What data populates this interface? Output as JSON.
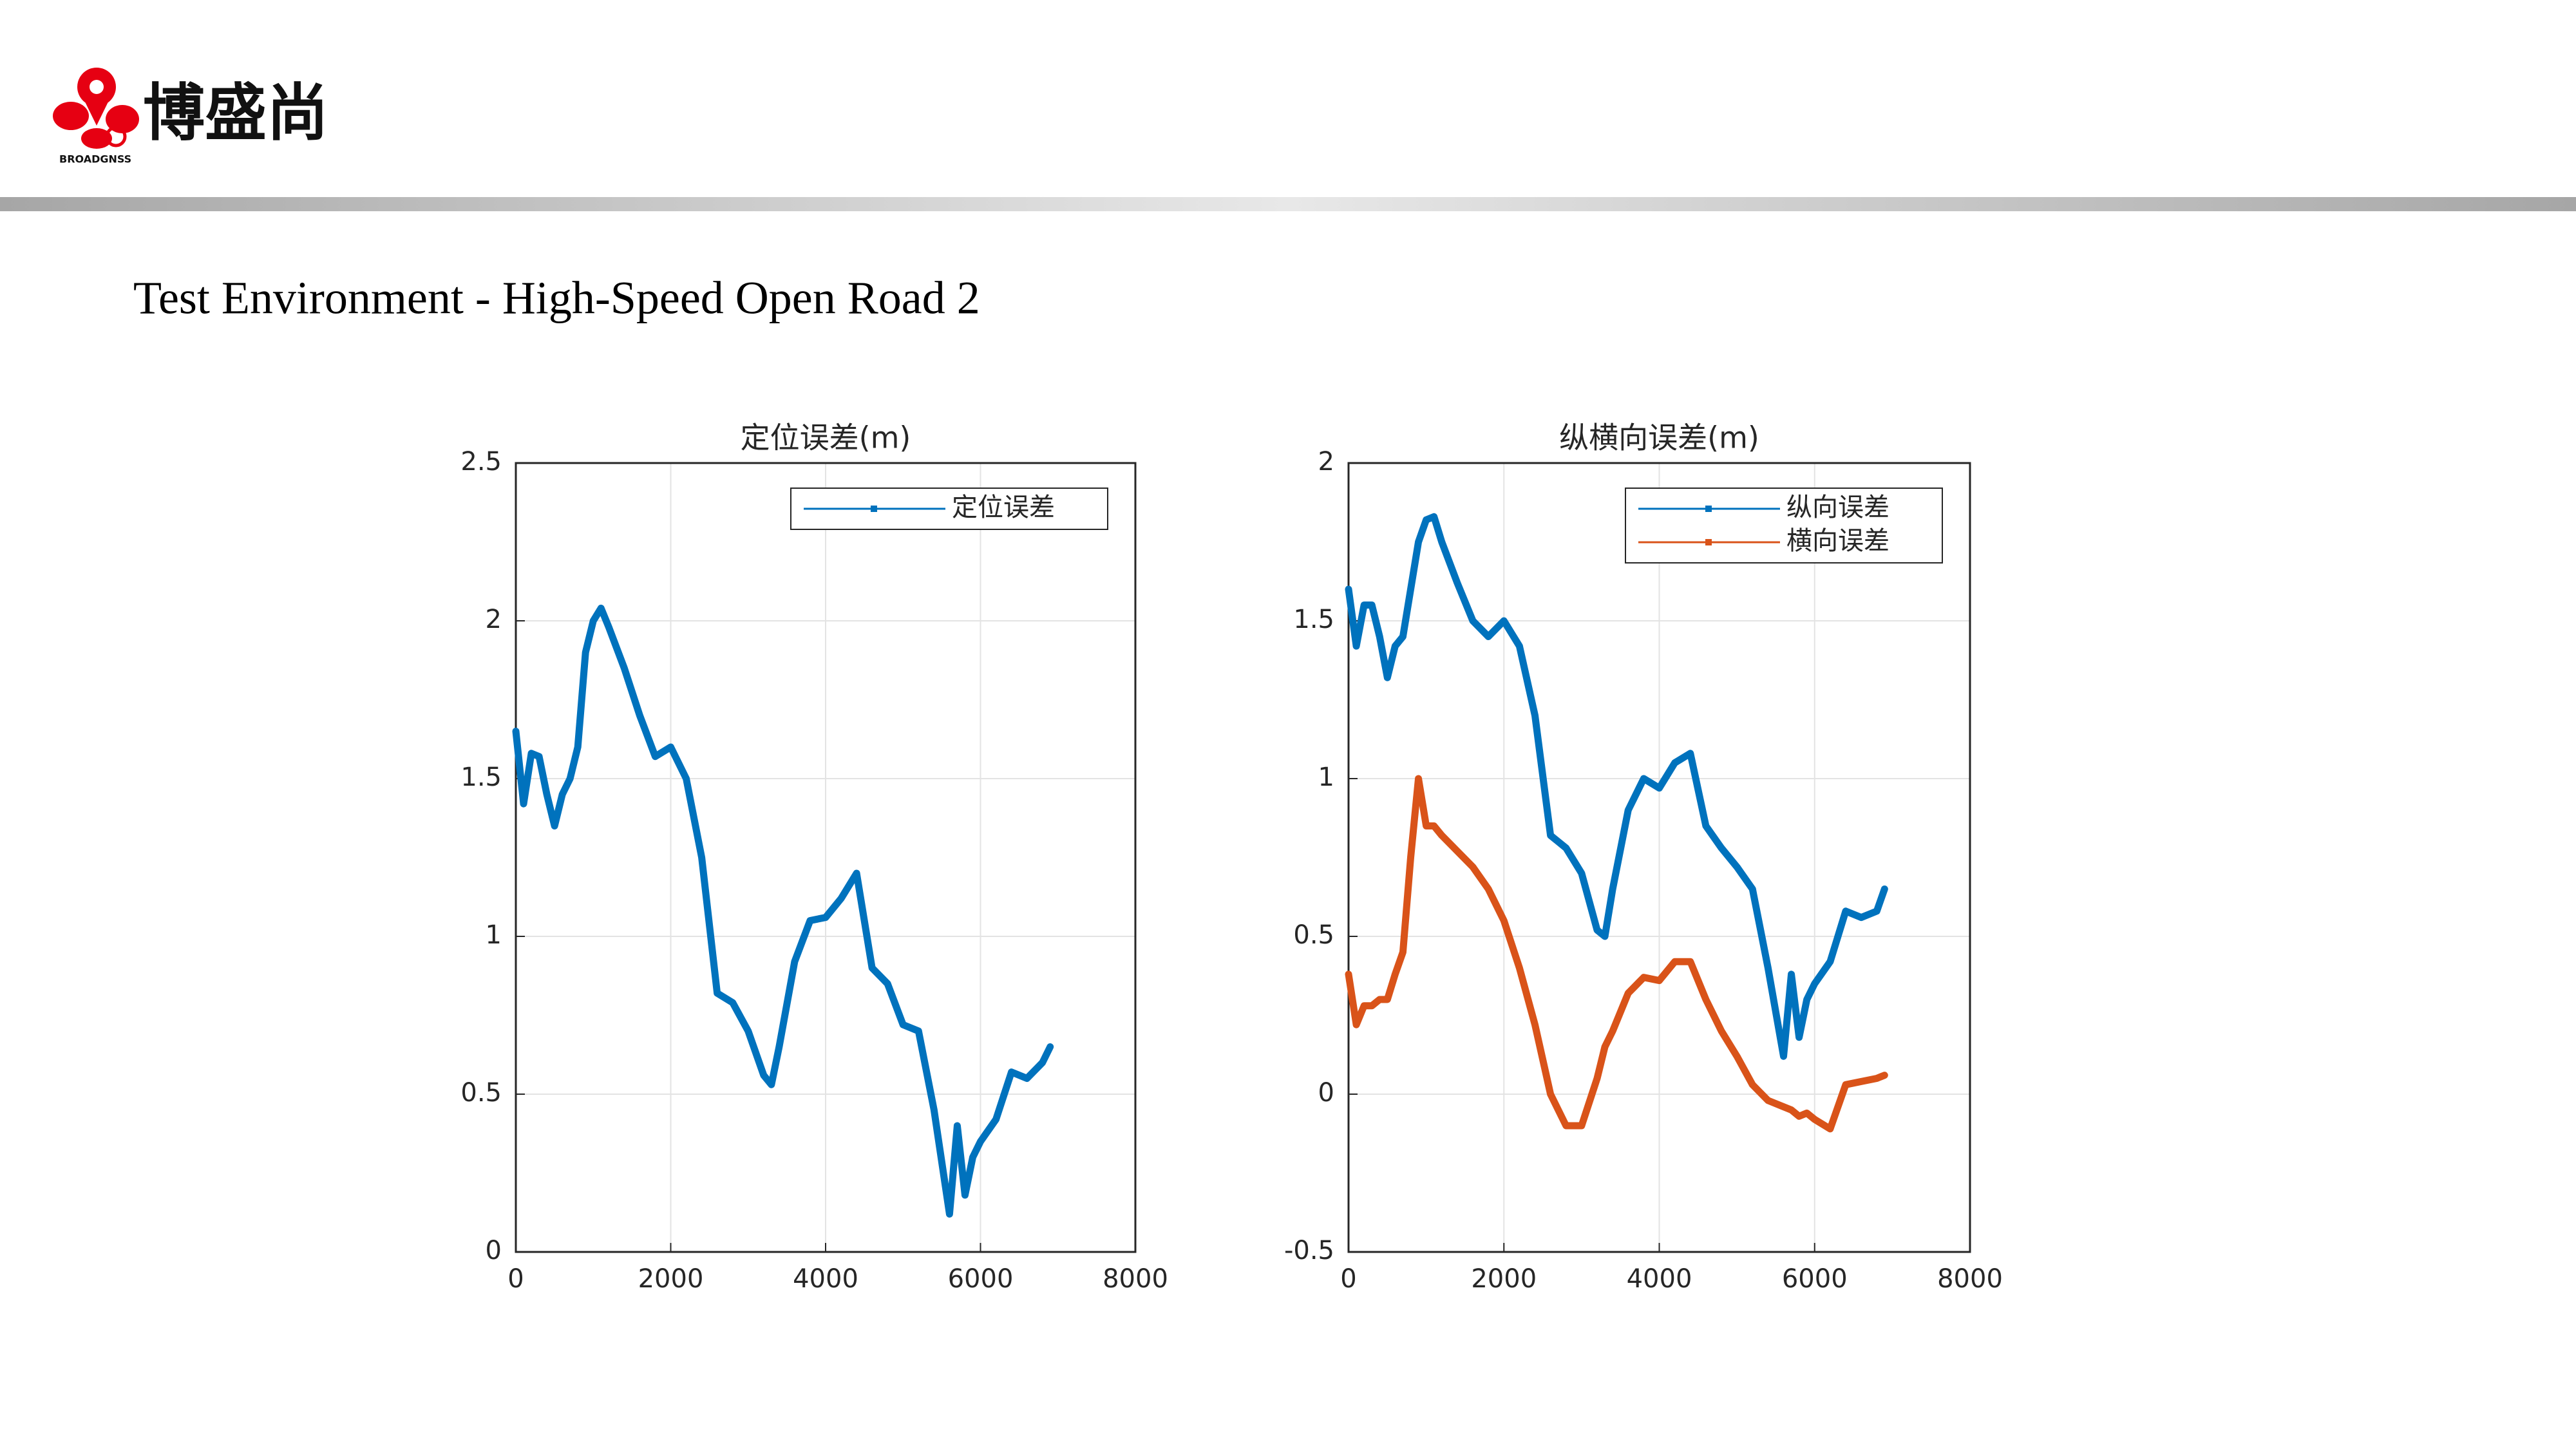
{
  "brand": {
    "name": "博盛尚",
    "sub": "BROADGNSS"
  },
  "title": "Test Environment - High-Speed Open Road 2",
  "chart_data": [
    {
      "type": "line",
      "title": "定位误差(m)",
      "x": [
        0,
        100,
        200,
        300,
        400,
        500,
        600,
        700,
        800,
        900,
        1000,
        1100,
        1200,
        1400,
        1600,
        1800,
        2000,
        2200,
        2400,
        2600,
        2800,
        3000,
        3200,
        3300,
        3400,
        3600,
        3800,
        4000,
        4200,
        4400,
        4600,
        4800,
        5000,
        5200,
        5400,
        5600,
        5700,
        5800,
        5900,
        6000,
        6200,
        6400,
        6600,
        6800,
        6900
      ],
      "xlim": [
        0,
        8000
      ],
      "xticks": [
        0,
        2000,
        4000,
        6000,
        8000
      ],
      "ylim": [
        0,
        2.5
      ],
      "yticks": [
        0,
        0.5,
        1,
        1.5,
        2,
        2.5
      ],
      "grid": true,
      "legend": "northeast",
      "series": [
        {
          "name": "定位误差",
          "color": "#0072bd",
          "values": [
            1.65,
            1.42,
            1.58,
            1.57,
            1.45,
            1.35,
            1.45,
            1.5,
            1.6,
            1.9,
            2.0,
            2.04,
            1.98,
            1.85,
            1.7,
            1.57,
            1.6,
            1.5,
            1.25,
            0.82,
            0.79,
            0.7,
            0.56,
            0.53,
            0.65,
            0.92,
            1.05,
            1.06,
            1.12,
            1.2,
            0.9,
            0.85,
            0.72,
            0.7,
            0.45,
            0.12,
            0.4,
            0.18,
            0.3,
            0.35,
            0.42,
            0.57,
            0.55,
            0.6,
            0.65
          ]
        }
      ]
    },
    {
      "type": "line",
      "title": "纵横向误差(m)",
      "x": [
        0,
        100,
        200,
        300,
        400,
        500,
        600,
        700,
        800,
        900,
        1000,
        1100,
        1200,
        1400,
        1600,
        1800,
        2000,
        2200,
        2400,
        2600,
        2800,
        3000,
        3200,
        3300,
        3400,
        3600,
        3800,
        4000,
        4200,
        4400,
        4600,
        4800,
        5000,
        5200,
        5400,
        5600,
        5700,
        5800,
        5900,
        6000,
        6200,
        6400,
        6600,
        6800,
        6900
      ],
      "xlim": [
        0,
        8000
      ],
      "xticks": [
        0,
        2000,
        4000,
        6000,
        8000
      ],
      "ylim": [
        -0.5,
        2
      ],
      "yticks": [
        -0.5,
        0,
        0.5,
        1,
        1.5,
        2
      ],
      "grid": true,
      "legend": "northeast",
      "series": [
        {
          "name": "纵向误差",
          "color": "#0072bd",
          "values": [
            1.6,
            1.42,
            1.55,
            1.55,
            1.45,
            1.32,
            1.42,
            1.45,
            1.6,
            1.75,
            1.82,
            1.83,
            1.75,
            1.62,
            1.5,
            1.45,
            1.5,
            1.42,
            1.2,
            0.82,
            0.78,
            0.7,
            0.52,
            0.5,
            0.65,
            0.9,
            1.0,
            0.97,
            1.05,
            1.08,
            0.85,
            0.78,
            0.72,
            0.65,
            0.4,
            0.12,
            0.38,
            0.18,
            0.3,
            0.35,
            0.42,
            0.58,
            0.56,
            0.58,
            0.65
          ]
        },
        {
          "name": "横向误差",
          "color": "#d95319",
          "values": [
            0.38,
            0.22,
            0.28,
            0.28,
            0.3,
            0.3,
            0.38,
            0.45,
            0.75,
            1.0,
            0.85,
            0.85,
            0.82,
            0.77,
            0.72,
            0.65,
            0.55,
            0.4,
            0.22,
            0.0,
            -0.1,
            -0.1,
            0.05,
            0.15,
            0.2,
            0.32,
            0.37,
            0.36,
            0.42,
            0.42,
            0.3,
            0.2,
            0.12,
            0.03,
            -0.02,
            -0.04,
            -0.05,
            -0.07,
            -0.06,
            -0.08,
            -0.11,
            0.03,
            0.04,
            0.05,
            0.06
          ]
        }
      ]
    }
  ]
}
